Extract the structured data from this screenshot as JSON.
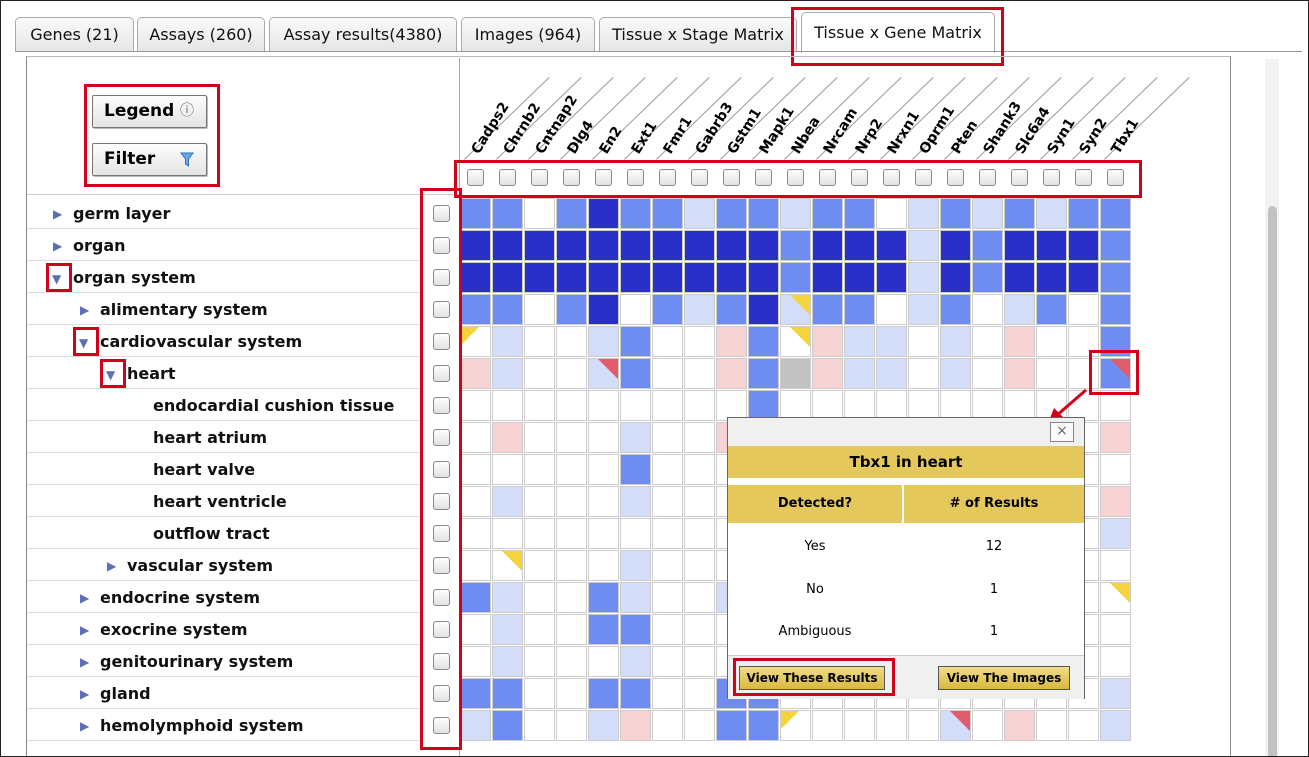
{
  "tabs": [
    {
      "label": "Genes (21)",
      "active": false
    },
    {
      "label": "Assays (260)",
      "active": false
    },
    {
      "label": "Assay results(4380)",
      "active": false
    },
    {
      "label": "Images (964)",
      "active": false
    },
    {
      "label": "Tissue x Stage Matrix",
      "active": false
    },
    {
      "label": "Tissue x Gene Matrix",
      "active": true
    }
  ],
  "legend_button": {
    "label": "Legend",
    "icon": "info-icon"
  },
  "filter_button": {
    "label": "Filter",
    "icon": "funnel-icon"
  },
  "genes": [
    "Cadps2",
    "Chrnb2",
    "Cntnap2",
    "Dlg4",
    "En2",
    "Ext1",
    "Fmr1",
    "Gabrb3",
    "Gstm1",
    "Mapk1",
    "Nbea",
    "Nrcam",
    "Nrp2",
    "Nrxn1",
    "Oprm1",
    "Pten",
    "Shank3",
    "Slc6a4",
    "Syn1",
    "Syn2",
    "Tbx1"
  ],
  "tree": [
    {
      "label": "germ layer",
      "depth": 0,
      "state": "collapsed"
    },
    {
      "label": "organ",
      "depth": 0,
      "state": "collapsed"
    },
    {
      "label": "organ system",
      "depth": 0,
      "state": "expanded"
    },
    {
      "label": "alimentary system",
      "depth": 1,
      "state": "collapsed"
    },
    {
      "label": "cardiovascular system",
      "depth": 1,
      "state": "expanded"
    },
    {
      "label": "heart",
      "depth": 2,
      "state": "expanded"
    },
    {
      "label": "endocardial cushion tissue",
      "depth": 3,
      "state": "leaf"
    },
    {
      "label": "heart atrium",
      "depth": 3,
      "state": "leaf"
    },
    {
      "label": "heart valve",
      "depth": 3,
      "state": "leaf"
    },
    {
      "label": "heart ventricle",
      "depth": 3,
      "state": "leaf"
    },
    {
      "label": "outflow tract",
      "depth": 3,
      "state": "leaf"
    },
    {
      "label": "vascular system",
      "depth": 2,
      "state": "collapsed"
    },
    {
      "label": "endocrine system",
      "depth": 1,
      "state": "collapsed"
    },
    {
      "label": "exocrine system",
      "depth": 1,
      "state": "collapsed"
    },
    {
      "label": "genitourinary system",
      "depth": 1,
      "state": "collapsed"
    },
    {
      "label": "gland",
      "depth": 1,
      "state": "collapsed"
    },
    {
      "label": "hemolymphoid system",
      "depth": 1,
      "state": "collapsed"
    }
  ],
  "colors": {
    "D": "#2b2fc9",
    "M": "#6f8cf0",
    "L": "#d3dcf8",
    "P": "#f6d2d2",
    "G": "#c2c2c2",
    "W": "#ffffff",
    "tri_yellow": "#f4d43c",
    "tri_red": "#e05c6a",
    "highlight_red": "#d0021b",
    "popup_gold": "#e5c85b"
  },
  "matrix": [
    "MMWMDMMLMMLMMWLMLMLMM",
    "DDDDDDDDDDMDDDLDMDDDM",
    "DDDDDDDDDDMDDDLDMDDDM",
    "MMWMDWMLMDLMMWLMWLMWM",
    "WLWWLMWWPMWPLLWLWPWWM",
    "PLWWLMWWPMGPLLWLWPWWM",
    "WWWWWWWWWMWWWWWWWWWWW",
    "WPWWWLWWPWWWWWWWWWWWP",
    "WWWWWMWWWWWWWWWWWWWWW",
    "WLWWWLWWWWWWWWWWWWWWP",
    "WWWWWWWWWWWWWWWWWWWWL",
    "WWWWWLWWWWWWWWWWWWWWW",
    "MLWWMLWWLWWWWWWWWWWWW",
    "WLWWMMWWWWWWWWWWWWWWW",
    "WLWWWLWWWWWWWWWWWWWWW",
    "MMWWMMWWMMWWWWWWWWWWL",
    "LMWWLPWWMMWWWWWLWPWWL"
  ],
  "triangles": [
    {
      "row": 3,
      "col": 10,
      "color": "tri_yellow",
      "corner": "tr"
    },
    {
      "row": 4,
      "col": 0,
      "color": "tri_yellow",
      "corner": "tl"
    },
    {
      "row": 4,
      "col": 10,
      "color": "tri_yellow",
      "corner": "tr"
    },
    {
      "row": 5,
      "col": 4,
      "color": "tri_red",
      "corner": "tr"
    },
    {
      "row": 5,
      "col": 20,
      "color": "tri_red",
      "corner": "tr"
    },
    {
      "row": 11,
      "col": 1,
      "color": "tri_yellow",
      "corner": "tr"
    },
    {
      "row": 12,
      "col": 20,
      "color": "tri_yellow",
      "corner": "tr"
    },
    {
      "row": 16,
      "col": 10,
      "color": "tri_yellow",
      "corner": "tl"
    },
    {
      "row": 16,
      "col": 15,
      "color": "tri_red",
      "corner": "tr"
    }
  ],
  "popup": {
    "title": "Tbx1 in heart",
    "close_label": "×",
    "col_detected": "Detected?",
    "col_results": "# of Results",
    "rows": [
      {
        "label": "Yes",
        "count": "12"
      },
      {
        "label": "No",
        "count": "1"
      },
      {
        "label": "Ambiguous",
        "count": "1"
      }
    ],
    "view_results_label": "View These Results",
    "view_images_label": "View The Images"
  }
}
